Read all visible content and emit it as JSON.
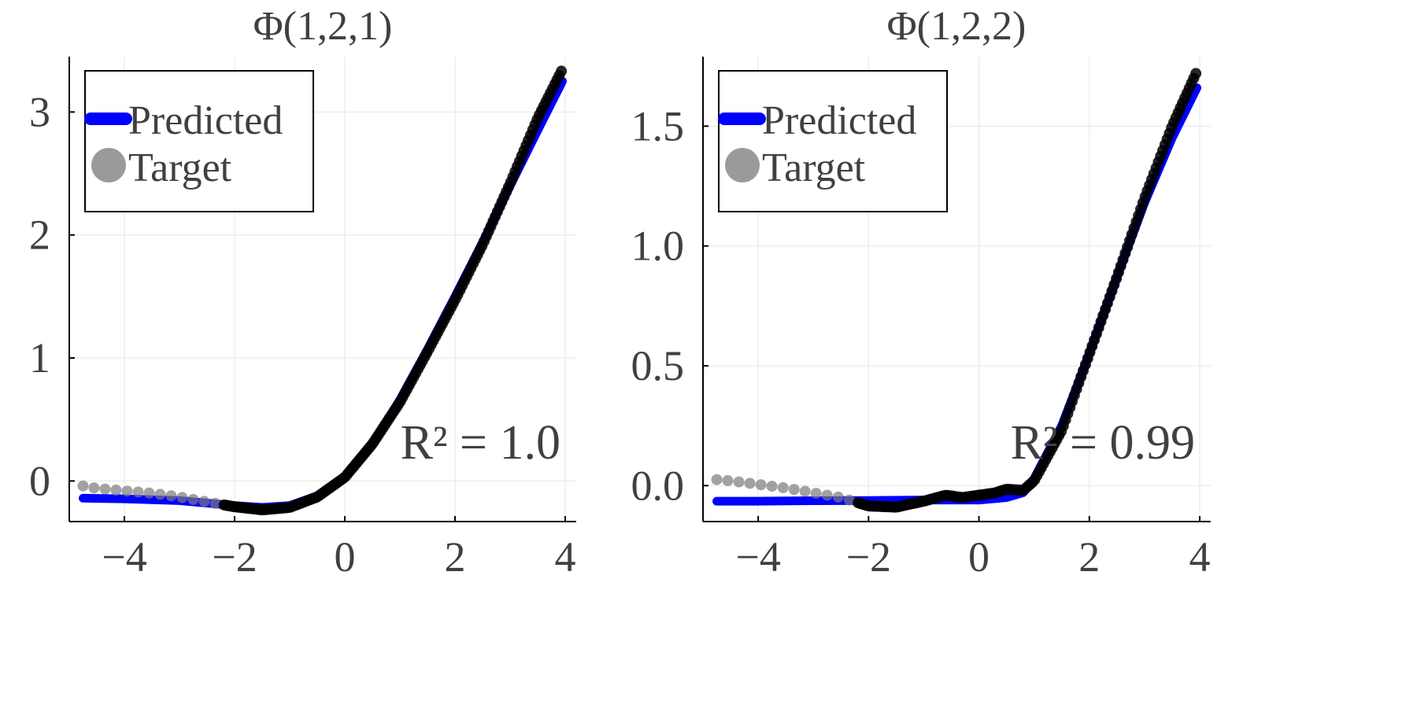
{
  "chart_data": [
    {
      "type": "line",
      "title": "Φ(1,2,1)",
      "xlabel": "",
      "ylabel": "",
      "xlim": [
        -5.0,
        4.2
      ],
      "ylim": [
        -0.33,
        3.45
      ],
      "xticks": [
        -4,
        -2,
        0,
        2,
        4
      ],
      "xtick_labels": [
        "−4",
        "−2",
        "0",
        "2",
        "4"
      ],
      "yticks": [
        0,
        1,
        2,
        3
      ],
      "ytick_labels": [
        "0",
        "1",
        "2",
        "3"
      ],
      "grid": true,
      "legend_position": "top-left",
      "annotation": "R² = 1.0",
      "series": [
        {
          "name": "Predicted",
          "kind": "line",
          "color": "#0000ff",
          "x": [
            -4.75,
            -4.0,
            -3.0,
            -2.0,
            -1.5,
            -1.0,
            -0.5,
            0.0,
            0.5,
            1.0,
            1.5,
            2.0,
            2.5,
            3.0,
            3.5,
            3.95
          ],
          "y": [
            -0.14,
            -0.145,
            -0.16,
            -0.2,
            -0.215,
            -0.2,
            -0.12,
            0.03,
            0.3,
            0.66,
            1.07,
            1.5,
            1.94,
            2.4,
            2.85,
            3.25
          ]
        },
        {
          "name": "Target",
          "kind": "scatter",
          "color": "#000000",
          "x": [
            -4.75,
            -4.5,
            -4.0,
            -3.5,
            -3.0,
            -2.5,
            -2.0,
            -1.5,
            -1.0,
            -0.5,
            0.0,
            0.5,
            1.0,
            1.5,
            2.0,
            2.5,
            3.0,
            3.5,
            3.95
          ],
          "y": [
            -0.04,
            -0.06,
            -0.08,
            -0.1,
            -0.13,
            -0.17,
            -0.21,
            -0.235,
            -0.215,
            -0.13,
            0.03,
            0.3,
            0.64,
            1.05,
            1.47,
            1.92,
            2.42,
            2.95,
            3.35
          ]
        }
      ]
    },
    {
      "type": "line",
      "title": "Φ(1,2,2)",
      "xlabel": "",
      "ylabel": "",
      "xlim": [
        -5.0,
        4.2
      ],
      "ylim": [
        -0.15,
        1.79
      ],
      "xticks": [
        -4,
        -2,
        0,
        2,
        4
      ],
      "xtick_labels": [
        "−4",
        "−2",
        "0",
        "2",
        "4"
      ],
      "yticks": [
        0.0,
        0.5,
        1.0,
        1.5
      ],
      "ytick_labels": [
        "0.0",
        "0.5",
        "1.0",
        "1.5"
      ],
      "grid": true,
      "legend_position": "top-left",
      "annotation": "R² = 0.99",
      "series": [
        {
          "name": "Predicted",
          "kind": "line",
          "color": "#0000ff",
          "x": [
            -4.75,
            -4.0,
            -3.0,
            -2.0,
            -1.0,
            0.0,
            0.5,
            0.8,
            1.0,
            1.5,
            2.0,
            2.5,
            3.0,
            3.5,
            3.95
          ],
          "y": [
            -0.065,
            -0.065,
            -0.063,
            -0.062,
            -0.06,
            -0.06,
            -0.05,
            -0.03,
            0.03,
            0.25,
            0.55,
            0.87,
            1.18,
            1.45,
            1.66
          ]
        },
        {
          "name": "Target",
          "kind": "scatter",
          "color": "#000000",
          "x": [
            -4.75,
            -4.5,
            -4.0,
            -3.5,
            -3.0,
            -2.5,
            -2.0,
            -1.5,
            -1.0,
            -0.6,
            -0.3,
            0.0,
            0.3,
            0.5,
            0.8,
            1.0,
            1.5,
            2.0,
            2.5,
            3.0,
            3.5,
            3.95
          ],
          "y": [
            0.025,
            0.02,
            0.005,
            -0.01,
            -0.03,
            -0.05,
            -0.085,
            -0.09,
            -0.065,
            -0.04,
            -0.05,
            -0.04,
            -0.03,
            -0.015,
            -0.02,
            0.02,
            0.23,
            0.55,
            0.87,
            1.2,
            1.5,
            1.73
          ]
        }
      ]
    }
  ]
}
